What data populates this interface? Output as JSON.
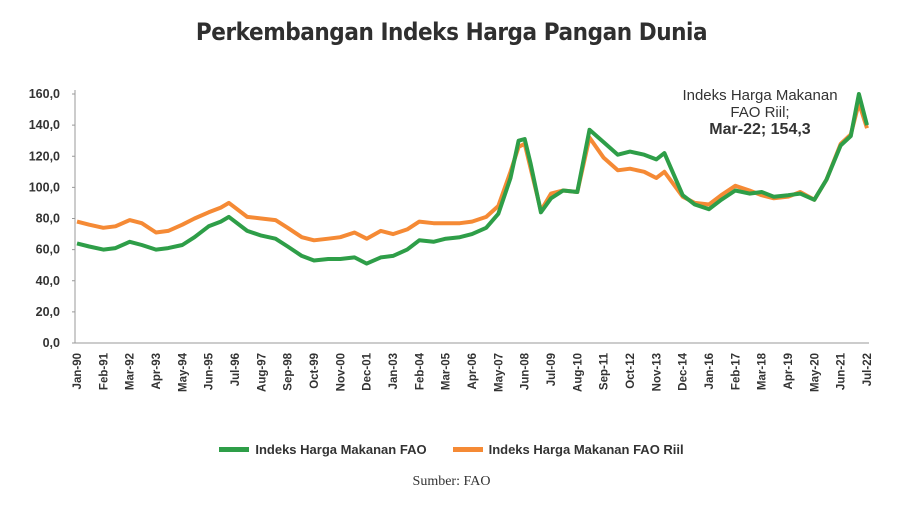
{
  "chart_data": {
    "type": "line",
    "title": "Perkembangan Indeks Harga Pangan Dunia",
    "xlabel": "",
    "ylabel": "",
    "ylim": [
      0,
      160
    ],
    "yticks": [
      "0,0",
      "20,0",
      "40,0",
      "60,0",
      "80,0",
      "100,0",
      "120,0",
      "140,0",
      "160,0"
    ],
    "xticks": [
      "Jan-90",
      "Feb-91",
      "Mar-92",
      "Apr-93",
      "May-94",
      "Jun-95",
      "Jul-96",
      "Aug-97",
      "Sep-98",
      "Oct-99",
      "Nov-00",
      "Dec-01",
      "Jan-03",
      "Feb-04",
      "Mar-05",
      "Apr-06",
      "May-07",
      "Jun-08",
      "Jul-09",
      "Aug-10",
      "Sep-11",
      "Oct-12",
      "Nov-13",
      "Dec-14",
      "Jan-16",
      "Feb-17",
      "Mar-18",
      "Apr-19",
      "May-20",
      "Jun-21",
      "Jul-22"
    ],
    "grid": false,
    "legend": "bottom",
    "x": [
      "1990-01",
      "1990-07",
      "1991-02",
      "1991-08",
      "1992-03",
      "1992-09",
      "1993-04",
      "1993-10",
      "1994-05",
      "1994-11",
      "1995-06",
      "1995-12",
      "1996-04",
      "1996-07",
      "1997-01",
      "1997-08",
      "1998-03",
      "1998-09",
      "1999-04",
      "1999-10",
      "2000-05",
      "2000-11",
      "2001-06",
      "2001-12",
      "2002-07",
      "2003-01",
      "2003-08",
      "2004-02",
      "2004-09",
      "2005-03",
      "2005-10",
      "2006-04",
      "2006-11",
      "2007-05",
      "2007-11",
      "2008-03",
      "2008-06",
      "2008-09",
      "2009-02",
      "2009-07",
      "2010-01",
      "2010-08",
      "2011-02",
      "2011-09",
      "2012-04",
      "2012-10",
      "2013-05",
      "2013-11",
      "2014-03",
      "2014-12",
      "2015-06",
      "2016-01",
      "2016-07",
      "2017-02",
      "2017-09",
      "2018-03",
      "2018-09",
      "2019-04",
      "2019-10",
      "2020-05",
      "2020-11",
      "2021-06",
      "2021-11",
      "2022-03",
      "2022-07"
    ],
    "series": [
      {
        "name": "Indeks Harga Makanan FAO",
        "color": "#2e9e48",
        "values": [
          64,
          62,
          60,
          61,
          65,
          63,
          60,
          61,
          63,
          68,
          75,
          78,
          81,
          78,
          72,
          69,
          67,
          62,
          56,
          53,
          54,
          54,
          55,
          51,
          55,
          56,
          60,
          66,
          65,
          67,
          68,
          70,
          74,
          83,
          106,
          130,
          131,
          115,
          84,
          93,
          98,
          97,
          137,
          129,
          121,
          123,
          121,
          118,
          122,
          95,
          89,
          86,
          92,
          98,
          96,
          97,
          94,
          95,
          96,
          92,
          105,
          127,
          133,
          160,
          140
        ]
      },
      {
        "name": "Indeks Harga Makanan FAO Riil",
        "color": "#f58a35",
        "values": [
          78,
          76,
          74,
          75,
          79,
          77,
          71,
          72,
          76,
          80,
          84,
          87,
          90,
          87,
          81,
          80,
          79,
          74,
          68,
          66,
          67,
          68,
          71,
          67,
          72,
          70,
          73,
          78,
          77,
          77,
          77,
          78,
          81,
          88,
          110,
          126,
          128,
          112,
          85,
          96,
          98,
          97,
          132,
          119,
          111,
          112,
          110,
          106,
          110,
          94,
          90,
          89,
          95,
          101,
          98,
          95,
          93,
          94,
          97,
          92,
          105,
          128,
          134,
          154.3,
          138
        ]
      }
    ],
    "annotation": {
      "line1": "Indeks Harga Makanan",
      "line2": "FAO Riil;",
      "line3": "Mar-22; 154,3"
    },
    "source": "Sumber: FAO"
  }
}
